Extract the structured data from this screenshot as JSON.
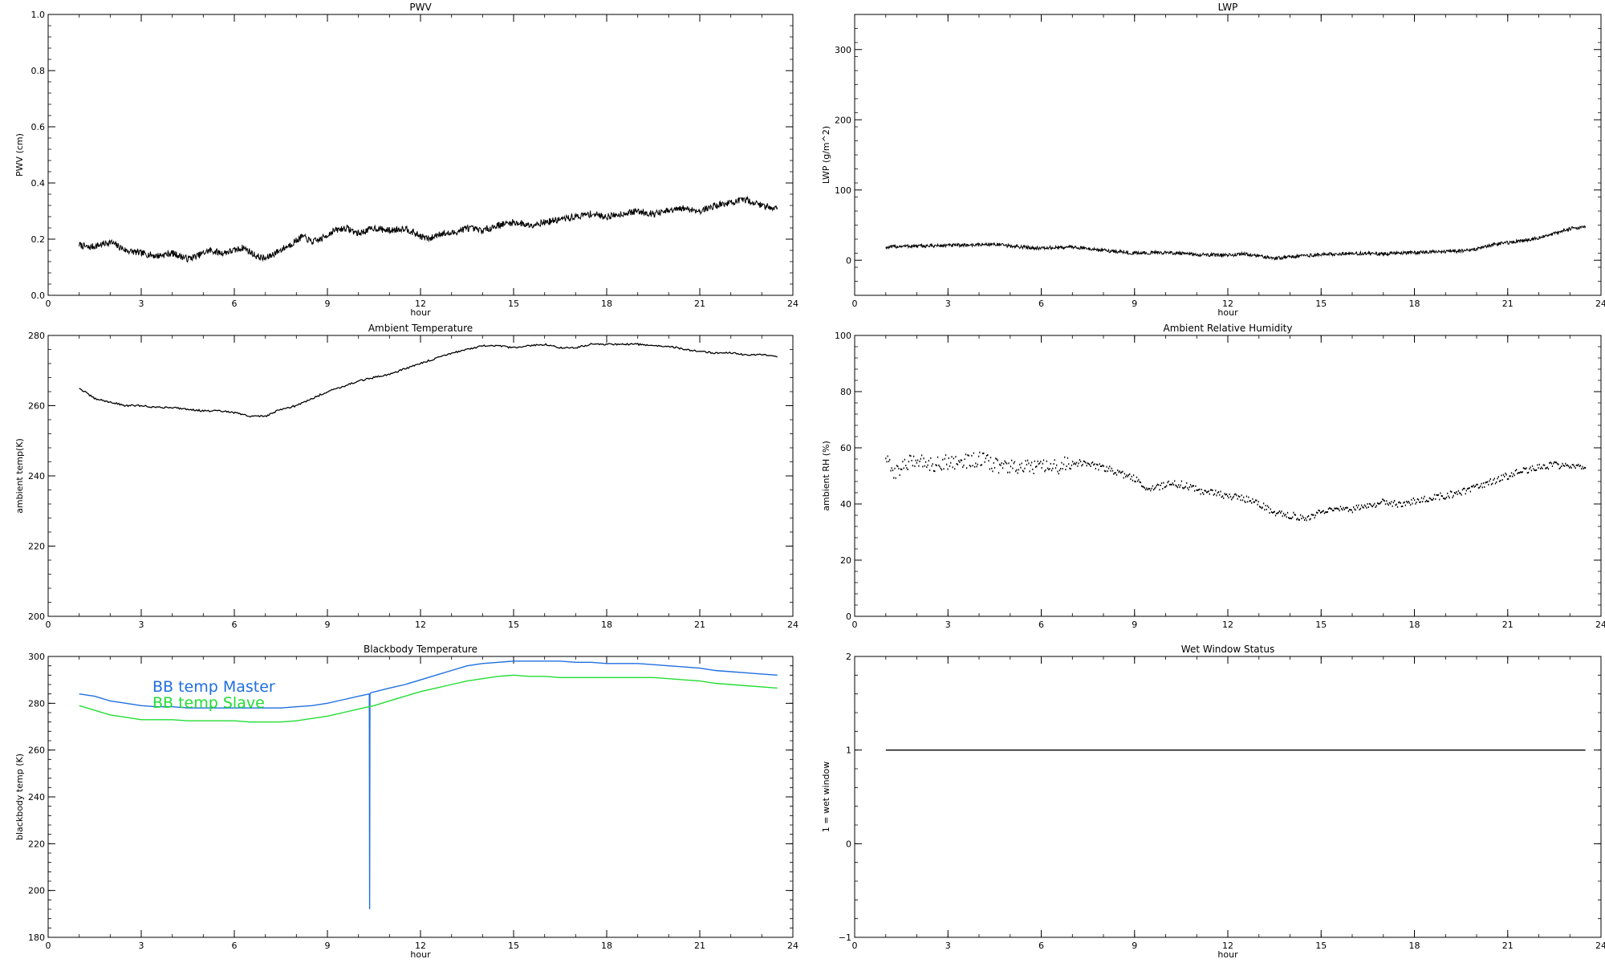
{
  "chart_data": [
    {
      "id": "pwv",
      "type": "line",
      "title": "PWV",
      "xlabel": "hour",
      "ylabel": "PWV (cm)",
      "xlim": [
        0,
        24
      ],
      "ylim": [
        0,
        1.0
      ],
      "xticks": [
        0,
        3,
        6,
        9,
        12,
        15,
        18,
        21,
        24
      ],
      "yticks": [
        0,
        0.2,
        0.4,
        0.6,
        0.8,
        1.0
      ],
      "ytick_labels": [
        "0.0",
        "0.2",
        "0.4",
        "0.6",
        "0.8",
        "1.0"
      ],
      "x_minor": 1,
      "y_minor": 0.04,
      "series": [
        {
          "color": "#000000",
          "noise": 0.012,
          "style": "noisy",
          "x": [
            1.0,
            1.3,
            1.7,
            2.0,
            2.5,
            3.0,
            3.5,
            4.0,
            4.5,
            4.8,
            5.2,
            5.6,
            6.0,
            6.3,
            6.7,
            7.0,
            7.3,
            7.8,
            8.2,
            8.5,
            8.8,
            9.2,
            9.6,
            10.0,
            10.5,
            11.0,
            11.5,
            12.0,
            12.3,
            12.6,
            13.0,
            13.5,
            14.0,
            14.5,
            15.0,
            15.5,
            16.0,
            16.5,
            17.0,
            17.5,
            18.0,
            18.5,
            19.0,
            19.5,
            20.0,
            20.5,
            21.0,
            21.5,
            22.0,
            22.5,
            23.0,
            23.5
          ],
          "y": [
            0.18,
            0.17,
            0.18,
            0.19,
            0.16,
            0.15,
            0.14,
            0.15,
            0.13,
            0.14,
            0.16,
            0.15,
            0.16,
            0.17,
            0.14,
            0.13,
            0.15,
            0.18,
            0.21,
            0.19,
            0.2,
            0.23,
            0.24,
            0.22,
            0.24,
            0.23,
            0.24,
            0.21,
            0.2,
            0.22,
            0.22,
            0.24,
            0.23,
            0.25,
            0.26,
            0.25,
            0.26,
            0.27,
            0.28,
            0.29,
            0.28,
            0.29,
            0.3,
            0.29,
            0.3,
            0.31,
            0.3,
            0.32,
            0.33,
            0.34,
            0.32,
            0.31
          ]
        }
      ]
    },
    {
      "id": "lwp",
      "type": "line",
      "title": "LWP",
      "xlabel": "hour",
      "ylabel": "LWP (g/m^2)",
      "xlim": [
        0,
        24
      ],
      "ylim": [
        -50,
        350
      ],
      "xticks": [
        0,
        3,
        6,
        9,
        12,
        15,
        18,
        21,
        24
      ],
      "yticks": [
        0,
        100,
        200,
        300
      ],
      "ytick_labels": [
        "0",
        "100",
        "200",
        "300"
      ],
      "x_minor": 1,
      "y_minor": 20,
      "series": [
        {
          "color": "#000000",
          "noise": 2.5,
          "style": "noisy",
          "x": [
            1.0,
            1.5,
            2.0,
            3.0,
            4.0,
            4.5,
            5.0,
            6.0,
            7.0,
            8.0,
            9.0,
            10.0,
            11.0,
            12.0,
            12.5,
            13.0,
            13.5,
            14.0,
            15.0,
            16.0,
            17.0,
            18.0,
            19.0,
            19.5,
            20.0,
            20.5,
            21.0,
            21.5,
            22.0,
            22.5,
            23.0,
            23.5
          ],
          "y": [
            18,
            20,
            20,
            21,
            22,
            23,
            20,
            17,
            19,
            14,
            10,
            11,
            8,
            7,
            9,
            6,
            3,
            5,
            8,
            10,
            9,
            11,
            12,
            13,
            16,
            22,
            25,
            28,
            32,
            38,
            45,
            48
          ]
        }
      ]
    },
    {
      "id": "ambient_temperature",
      "type": "line",
      "title": "Ambient Temperature",
      "xlabel": "",
      "ylabel": "ambient temp(K)",
      "xlim": [
        0,
        24
      ],
      "ylim": [
        200,
        280
      ],
      "xticks": [
        0,
        3,
        6,
        9,
        12,
        15,
        18,
        21,
        24
      ],
      "yticks": [
        200,
        220,
        240,
        260,
        280
      ],
      "ytick_labels": [
        "200",
        "220",
        "240",
        "260",
        "280"
      ],
      "x_minor": 1,
      "y_minor": 4,
      "series": [
        {
          "color": "#000000",
          "noise": 0.25,
          "style": "line",
          "x": [
            1.0,
            1.5,
            2.0,
            2.5,
            3.0,
            3.5,
            4.0,
            4.5,
            5.0,
            5.5,
            6.0,
            6.5,
            7.0,
            7.5,
            8.0,
            8.5,
            9.0,
            9.5,
            10.0,
            10.5,
            11.0,
            11.5,
            12.0,
            12.5,
            13.0,
            13.5,
            14.0,
            14.5,
            15.0,
            15.5,
            16.0,
            16.5,
            17.0,
            17.5,
            18.0,
            18.5,
            19.0,
            19.5,
            20.0,
            20.5,
            21.0,
            21.5,
            22.0,
            22.5,
            23.0,
            23.5
          ],
          "y": [
            265,
            262,
            261,
            260,
            260,
            259.5,
            259.5,
            259,
            258.5,
            258.5,
            258,
            257,
            257,
            259,
            260,
            262,
            264,
            265.5,
            267,
            268,
            269,
            270.5,
            272,
            273.5,
            275,
            276,
            277,
            277,
            276.5,
            277,
            277.5,
            276.5,
            276.5,
            277.5,
            277.5,
            277.5,
            277.5,
            277,
            277,
            276,
            275.5,
            275,
            275,
            274.5,
            274.5,
            274
          ]
        }
      ]
    },
    {
      "id": "ambient_relative_humidity",
      "type": "scatter",
      "title": "Ambient Relative Humidity",
      "xlabel": "",
      "ylabel": "ambient RH (%)",
      "xlim": [
        0,
        24
      ],
      "ylim": [
        0,
        100
      ],
      "xticks": [
        0,
        3,
        6,
        9,
        12,
        15,
        18,
        21,
        24
      ],
      "yticks": [
        0,
        20,
        40,
        60,
        80,
        100
      ],
      "ytick_labels": [
        "0",
        "20",
        "40",
        "60",
        "80",
        "100"
      ],
      "x_minor": 1,
      "y_minor": 4,
      "series": [
        {
          "color": "#000000",
          "noise": 1.2,
          "style": "dots",
          "x": [
            1.0,
            1.2,
            1.5,
            2.0,
            2.5,
            3.0,
            3.5,
            4.0,
            4.5,
            5.0,
            5.5,
            6.0,
            6.5,
            7.0,
            7.5,
            8.0,
            8.5,
            9.0,
            9.5,
            10.0,
            10.5,
            11.0,
            11.5,
            12.0,
            12.5,
            13.0,
            13.5,
            14.0,
            14.5,
            15.0,
            15.5,
            16.0,
            16.5,
            17.0,
            17.5,
            18.0,
            18.5,
            19.0,
            19.5,
            20.0,
            20.5,
            21.0,
            21.5,
            22.0,
            22.5,
            23.0,
            23.5
          ],
          "y": [
            57,
            51,
            53,
            56,
            54,
            55,
            55,
            56,
            54,
            53,
            53,
            53,
            53,
            55,
            54,
            53,
            51,
            49,
            45,
            47,
            47,
            45,
            44,
            43,
            42,
            40,
            37,
            36,
            35,
            37,
            38,
            38,
            39,
            41,
            40,
            41,
            42,
            43,
            44,
            46,
            48,
            50,
            52,
            53,
            54,
            53,
            53
          ]
        }
      ]
    },
    {
      "id": "blackbody_temperature",
      "type": "line",
      "title": "Blackbody Temperature",
      "xlabel": "hour",
      "ylabel": "blackbody temp (K)",
      "xlim": [
        0,
        24
      ],
      "ylim": [
        180,
        300
      ],
      "xticks": [
        0,
        3,
        6,
        9,
        12,
        15,
        18,
        21,
        24
      ],
      "yticks": [
        180,
        200,
        220,
        240,
        260,
        280,
        300
      ],
      "ytick_labels": [
        "180",
        "200",
        "220",
        "240",
        "260",
        "280",
        "300"
      ],
      "x_minor": 1,
      "y_minor": 4,
      "legend": [
        "BB temp Master",
        "BB temp Slave"
      ],
      "series": [
        {
          "name": "BB temp Master",
          "color": "#1f6fe0",
          "noise": 0,
          "style": "line",
          "x": [
            1.0,
            1.5,
            2.0,
            2.5,
            3.0,
            3.5,
            4.0,
            4.5,
            5.0,
            5.5,
            6.0,
            6.5,
            7.0,
            7.5,
            8.0,
            8.5,
            9.0,
            9.5,
            10.0,
            10.35,
            10.36,
            10.37,
            10.4,
            11.0,
            11.5,
            12.0,
            12.5,
            13.0,
            13.5,
            14.0,
            14.5,
            15.0,
            15.5,
            16.0,
            16.5,
            17.0,
            17.5,
            18.0,
            18.5,
            19.0,
            19.5,
            20.0,
            20.5,
            21.0,
            21.5,
            22.0,
            22.5,
            23.0,
            23.5
          ],
          "y": [
            284,
            283,
            281,
            280,
            279,
            278.5,
            278.5,
            278,
            278,
            278,
            278,
            278,
            278,
            278,
            278.5,
            279,
            280,
            281.5,
            283,
            284,
            192,
            284,
            284.5,
            286.5,
            288,
            290,
            292,
            294,
            296,
            297,
            297.5,
            298,
            298,
            298,
            298,
            297.5,
            297.5,
            297,
            297,
            297,
            296.5,
            296,
            295.5,
            295,
            294,
            293.5,
            293,
            292.5,
            292
          ]
        },
        {
          "name": "BB temp Slave",
          "color": "#22dd33",
          "noise": 0,
          "style": "line",
          "x": [
            1.0,
            1.5,
            2.0,
            2.5,
            3.0,
            3.5,
            4.0,
            4.5,
            5.0,
            5.5,
            6.0,
            6.5,
            7.0,
            7.5,
            8.0,
            8.5,
            9.0,
            9.5,
            10.0,
            10.5,
            11.0,
            11.5,
            12.0,
            12.5,
            13.0,
            13.5,
            14.0,
            14.5,
            15.0,
            15.5,
            16.0,
            16.5,
            17.0,
            17.5,
            18.0,
            18.5,
            19.0,
            19.5,
            20.0,
            20.5,
            21.0,
            21.5,
            22.0,
            22.5,
            23.0,
            23.5
          ],
          "y": [
            279,
            277,
            275,
            274,
            273,
            273,
            273,
            272.5,
            272.5,
            272.5,
            272.5,
            272,
            272,
            272,
            272.5,
            273.5,
            274.5,
            276,
            277.5,
            279,
            281,
            283,
            285,
            286.5,
            288,
            289.5,
            290.5,
            291.5,
            292,
            291.5,
            291.5,
            291,
            291,
            291,
            291,
            291,
            291,
            291,
            290.5,
            290,
            289.5,
            288.5,
            288,
            287.5,
            287,
            286.5
          ]
        }
      ]
    },
    {
      "id": "wet_window_status",
      "type": "line",
      "title": "Wet Window Status",
      "xlabel": "hour",
      "ylabel": "1 = wet window",
      "xlim": [
        0,
        24
      ],
      "ylim": [
        -1,
        2
      ],
      "xticks": [
        0,
        3,
        6,
        9,
        12,
        15,
        18,
        21,
        24
      ],
      "yticks": [
        -1,
        0,
        1,
        2
      ],
      "ytick_labels": [
        "−1",
        "0",
        "1",
        "2"
      ],
      "x_minor": 1,
      "y_minor": 0.2,
      "series": [
        {
          "color": "#000000",
          "noise": 0,
          "style": "line",
          "x": [
            1.0,
            23.5
          ],
          "y": [
            1,
            1
          ]
        }
      ]
    }
  ]
}
